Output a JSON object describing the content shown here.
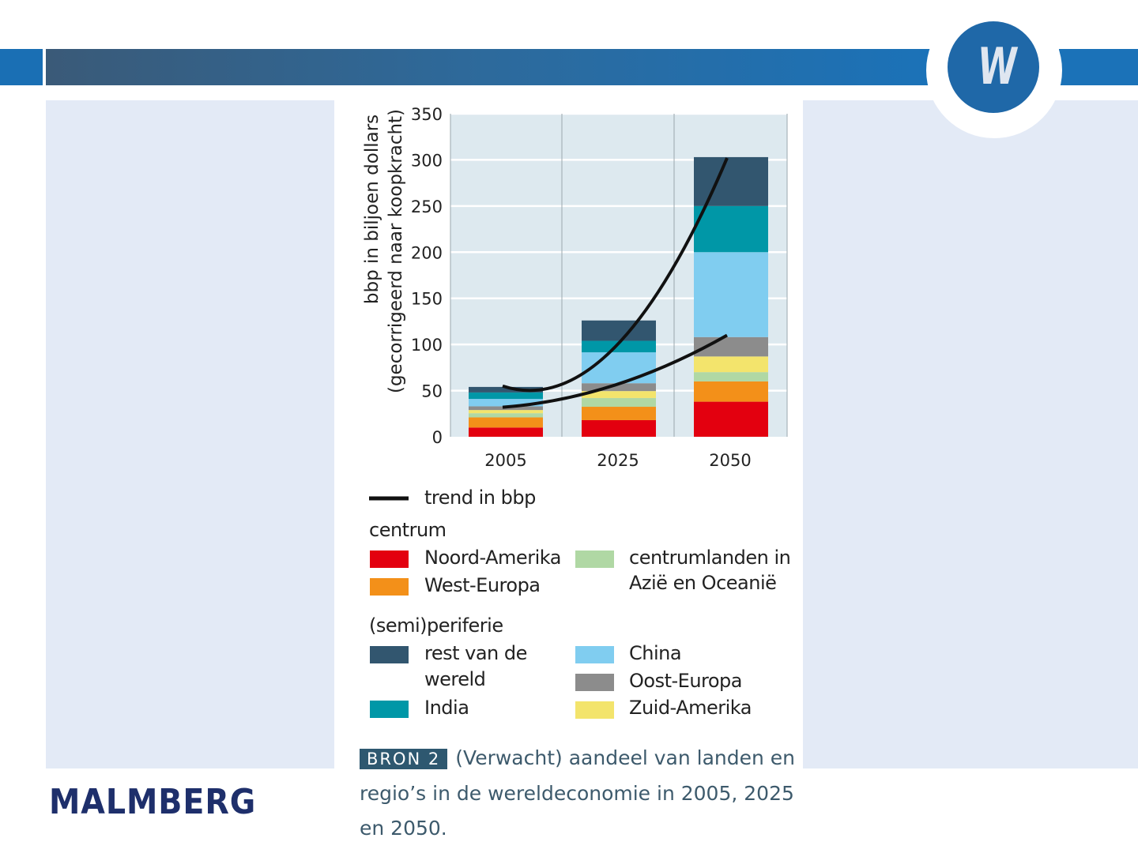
{
  "brand": {
    "logo_letter": "W",
    "publisher": "MALMBERG"
  },
  "chart_data": {
    "type": "bar",
    "stacked": true,
    "categories": [
      "2005",
      "2025",
      "2050"
    ],
    "ylabel": "bbp in biljoen dollars",
    "ylabel2": "(gecorrigeerd naar koopkracht)",
    "ylim": [
      0,
      350
    ],
    "yticks": [
      0,
      50,
      100,
      150,
      200,
      250,
      300,
      350
    ],
    "grid": true,
    "legend_placement": "bottom",
    "series": [
      {
        "name": "Noord-Amerika",
        "color": "#e3000f",
        "values": [
          10,
          18,
          38
        ]
      },
      {
        "name": "West-Europa",
        "color": "#f39019",
        "values": [
          11,
          14.5,
          22
        ]
      },
      {
        "name": "centrumlanden in Azië en Oceanië",
        "color": "#b0d8a4",
        "values": [
          4.5,
          9.5,
          10
        ]
      },
      {
        "name": "Zuid-Amerika",
        "color": "#f3e46c",
        "values": [
          3.5,
          7.5,
          17
        ]
      },
      {
        "name": "Oost-Europa",
        "color": "#8c8c8c",
        "values": [
          4,
          8.5,
          21
        ]
      },
      {
        "name": "China",
        "color": "#80cdf0",
        "values": [
          8,
          33.5,
          92
        ]
      },
      {
        "name": "India",
        "color": "#0097a7",
        "values": [
          7,
          12.5,
          50
        ]
      },
      {
        "name": "rest van de wereld",
        "color": "#32566f",
        "values": [
          6,
          22,
          53
        ]
      }
    ],
    "trend": {
      "name": "trend in bbp",
      "lines": [
        [
          55,
          97,
          302
        ],
        [
          32,
          56,
          110
        ]
      ]
    }
  },
  "legend": {
    "trend": "trend in bbp",
    "centrum": "centrum",
    "noord_amerika": "Noord-Amerika",
    "west_europa": "West-Europa",
    "centrumlanden1": "centrumlanden in",
    "centrumlanden2": "Azië en Oceanië",
    "periferie": "(semi)periferie",
    "rest1": "rest van de",
    "rest2": "wereld",
    "india": "India",
    "china": "China",
    "oost_europa": "Oost-Europa",
    "zuid_amerika": "Zuid-Amerika"
  },
  "caption": {
    "label": "BRON 2",
    "text": "(Verwacht) aandeel van landen en regio’s in de wereldeconomie in 2005, 2025 en 2050."
  }
}
